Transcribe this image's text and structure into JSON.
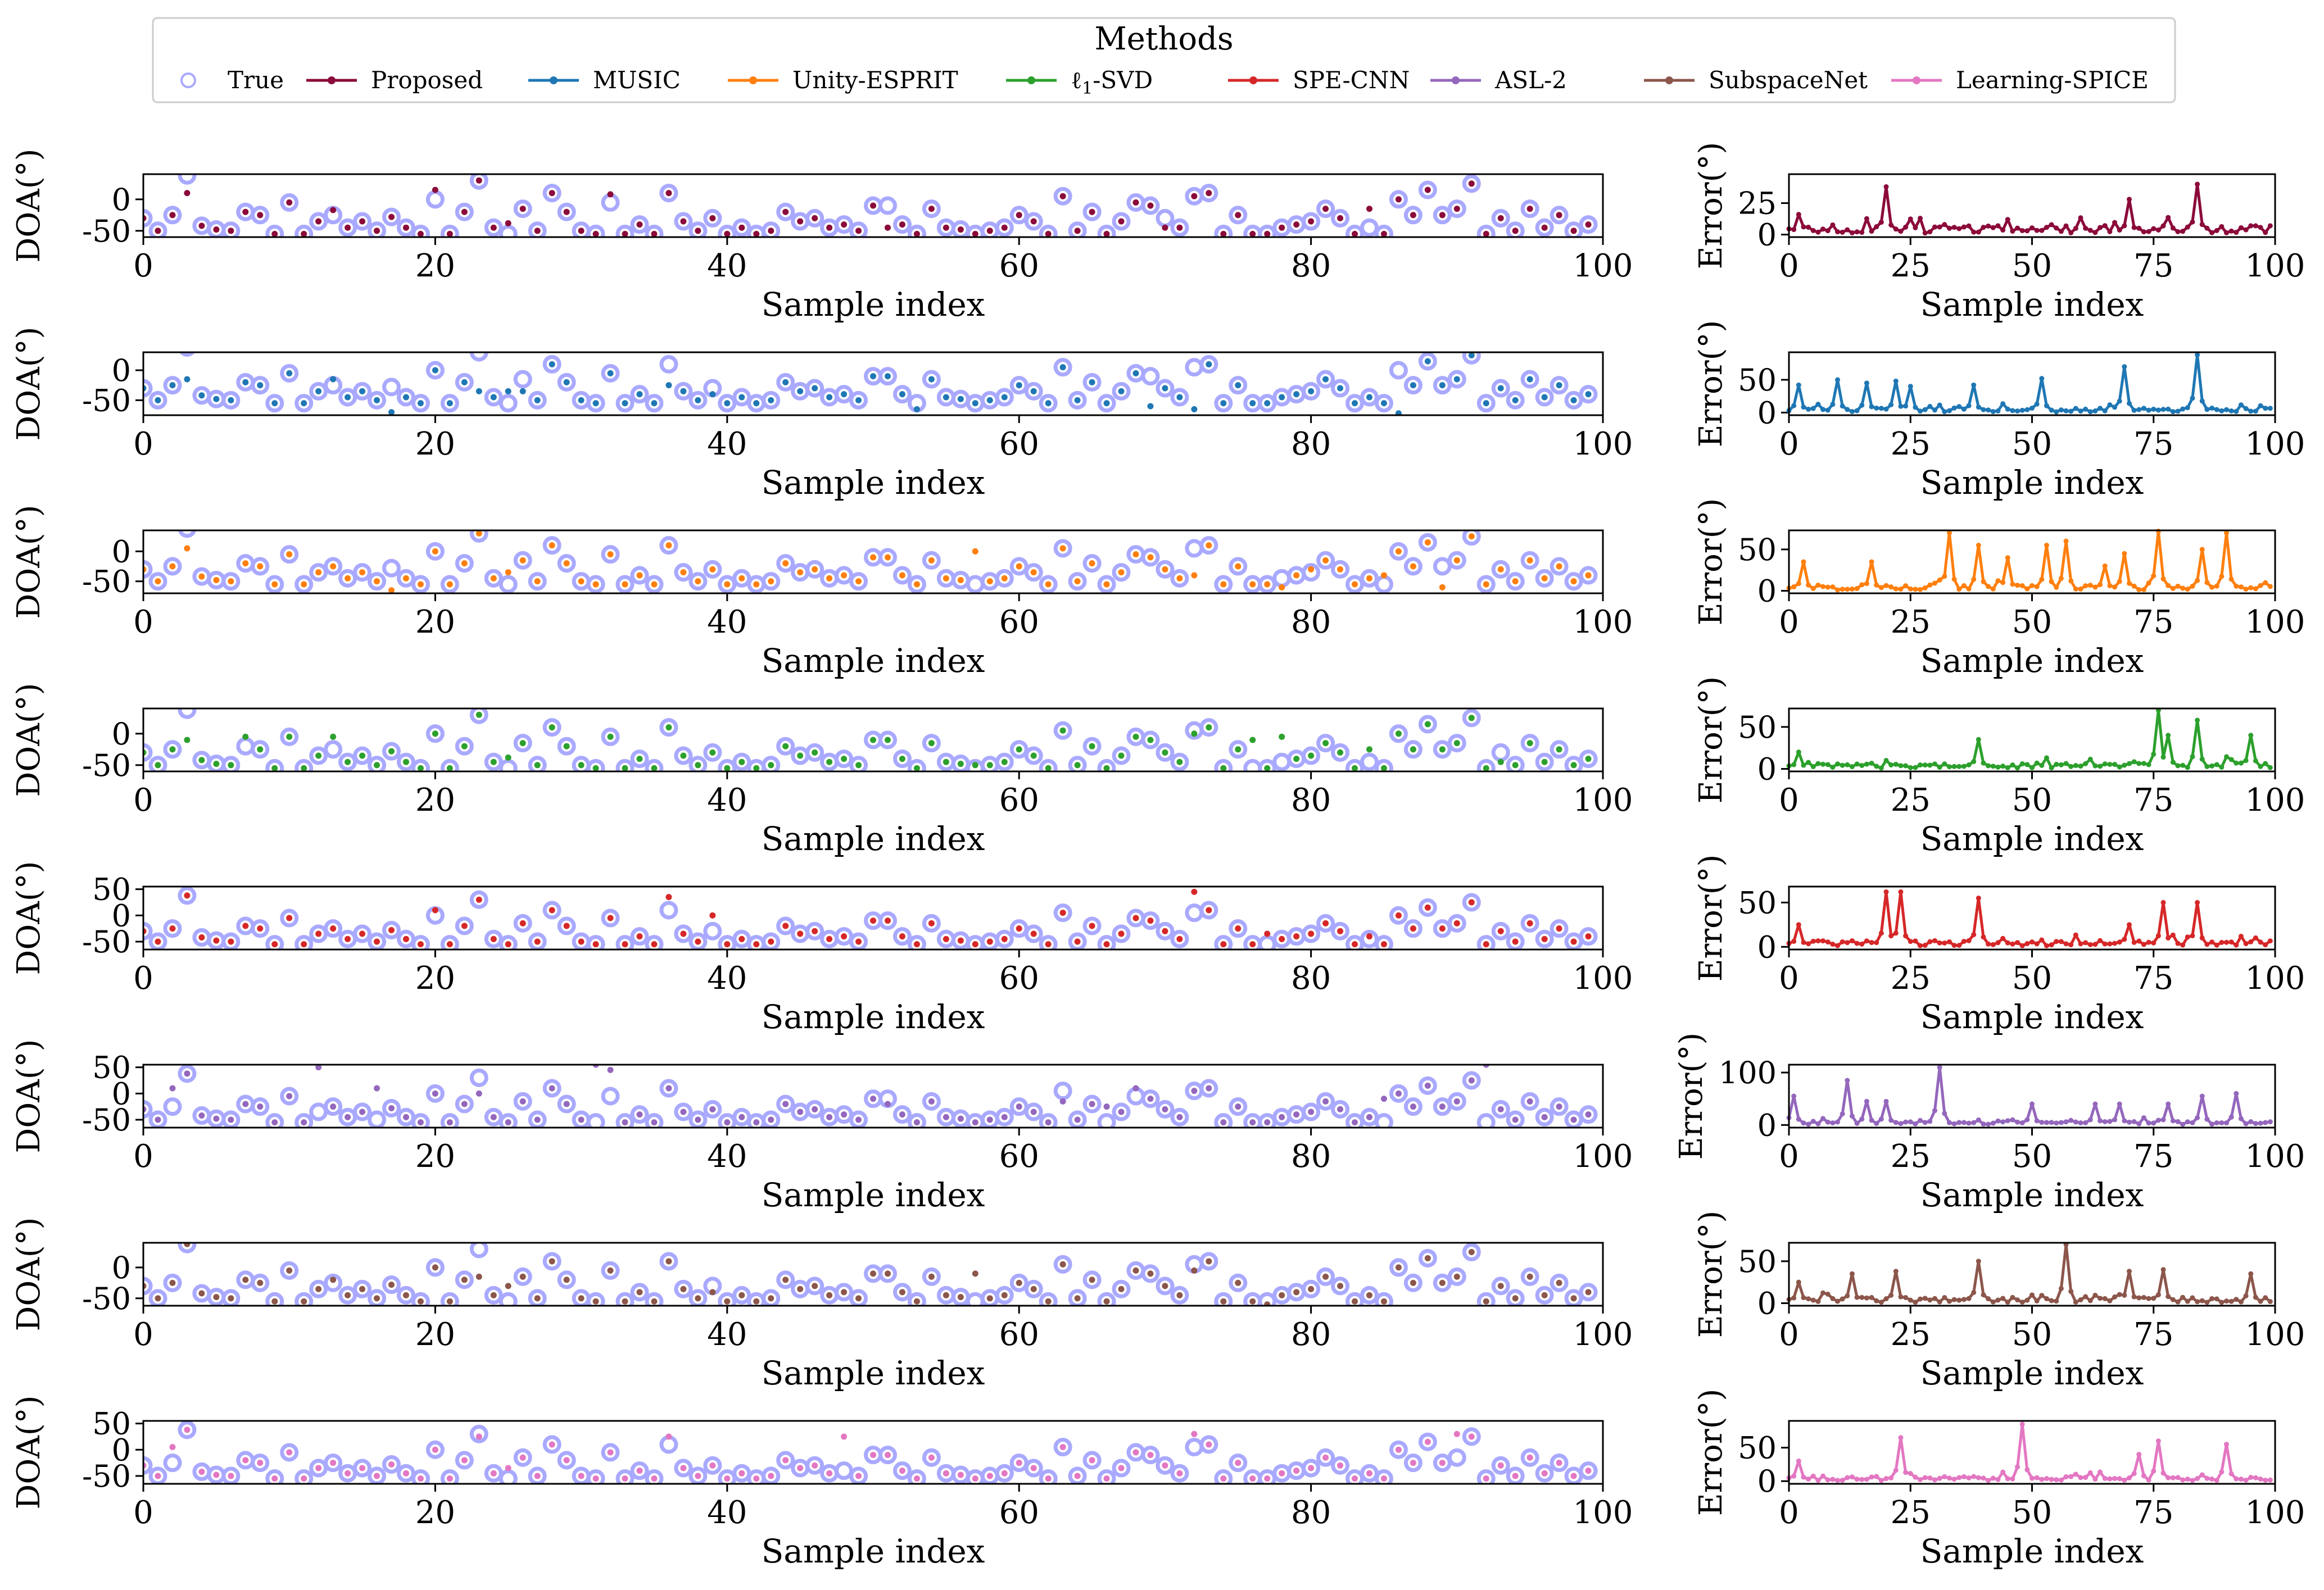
{
  "legend": {
    "title": "Methods",
    "placement": "top-center",
    "entries": [
      {
        "name": "True",
        "color": "#a9a9ff",
        "marker": "hollow-circle"
      },
      {
        "name": "Proposed",
        "color": "#8b0a3a",
        "marker": "line-dot"
      },
      {
        "name": "MUSIC",
        "color": "#1f77b4",
        "marker": "line-dot"
      },
      {
        "name": "Unity-ESPRIT",
        "color": "#ff7f0e",
        "marker": "line-dot"
      },
      {
        "name": "ℓ1-SVD",
        "color": "#2ca02c",
        "marker": "line-dot"
      },
      {
        "name": "SPE-CNN",
        "color": "#d62728",
        "marker": "line-dot"
      },
      {
        "name": "ASL-2",
        "color": "#9467bd",
        "marker": "line-dot"
      },
      {
        "name": "SubspaceNet",
        "color": "#8c564b",
        "marker": "line-dot"
      },
      {
        "name": "Learning-SPICE",
        "color": "#e377c2",
        "marker": "line-dot"
      }
    ]
  },
  "chart_data": {
    "type": "scatter",
    "true_doa": [
      -30,
      -50,
      -25,
      38,
      -42,
      -48,
      -50,
      -20,
      -25,
      -55,
      -5,
      -55,
      -35,
      -25,
      -45,
      -35,
      -50,
      -28,
      -45,
      -55,
      0,
      -55,
      -20,
      30,
      -45,
      -55,
      -15,
      -50,
      10,
      -20,
      -50,
      -55,
      -5,
      -55,
      -40,
      -55,
      10,
      -35,
      -50,
      -30,
      -55,
      -45,
      -55,
      -50,
      -20,
      -35,
      -30,
      -45,
      -40,
      -50,
      -10,
      -10,
      -40,
      -55,
      -15,
      -45,
      -48,
      -55,
      -50,
      -45,
      -25,
      -35,
      -55,
      5,
      -50,
      -20,
      -55,
      -35,
      -5,
      -10,
      -30,
      -45,
      5,
      10,
      -55,
      -25,
      -55,
      -55,
      -45,
      -40,
      -35,
      -15,
      -30,
      -55,
      -45,
      -55,
      0,
      -25,
      15,
      -25,
      -15,
      25,
      -55,
      -30,
      -50,
      -15,
      -45,
      -25,
      -50,
      -40
    ],
    "plots": [
      {
        "method": "Proposed",
        "color": "#8b0a3a",
        "doa_ylim": [
          -60,
          40
        ],
        "doa_yticks": [
          -50,
          0
        ],
        "err_ylim": [
          -2,
          48
        ],
        "err_yticks": [
          0,
          25
        ],
        "deviations": [
          {
            "i": 3,
            "v": 10
          },
          {
            "i": 13,
            "v": -17
          },
          {
            "i": 20,
            "v": 15
          },
          {
            "i": 25,
            "v": -38
          },
          {
            "i": 32,
            "v": 8
          },
          {
            "i": 51,
            "v": -45
          },
          {
            "i": 70,
            "v": -45
          },
          {
            "i": 84,
            "v": -15
          }
        ],
        "spikes": [
          {
            "i": 2,
            "v": 16
          },
          {
            "i": 20,
            "v": 38
          },
          {
            "i": 45,
            "v": 12
          },
          {
            "i": 70,
            "v": 28
          },
          {
            "i": 84,
            "v": 40
          }
        ]
      },
      {
        "method": "MUSIC",
        "color": "#1f77b4",
        "doa_ylim": [
          -75,
          30
        ],
        "doa_yticks": [
          -50,
          0
        ],
        "err_ylim": [
          -4,
          92
        ],
        "err_yticks": [
          0,
          50
        ],
        "deviations": [
          {
            "i": 3,
            "v": -15
          },
          {
            "i": 13,
            "v": -15
          },
          {
            "i": 17,
            "v": -70
          },
          {
            "i": 23,
            "v": -35
          },
          {
            "i": 25,
            "v": -35
          },
          {
            "i": 26,
            "v": -35
          },
          {
            "i": 36,
            "v": -25
          },
          {
            "i": 39,
            "v": -40
          },
          {
            "i": 53,
            "v": -65
          },
          {
            "i": 69,
            "v": -60
          },
          {
            "i": 72,
            "v": -65
          },
          {
            "i": 86,
            "v": -72
          }
        ],
        "spikes": [
          {
            "i": 2,
            "v": 42
          },
          {
            "i": 10,
            "v": 50
          },
          {
            "i": 16,
            "v": 45
          },
          {
            "i": 22,
            "v": 48
          },
          {
            "i": 25,
            "v": 40
          },
          {
            "i": 38,
            "v": 42
          },
          {
            "i": 52,
            "v": 52
          },
          {
            "i": 69,
            "v": 70
          },
          {
            "i": 84,
            "v": 88
          }
        ]
      },
      {
        "method": "Unity-ESPRIT",
        "color": "#ff7f0e",
        "doa_ylim": [
          -70,
          35
        ],
        "doa_yticks": [
          -50,
          0
        ],
        "err_ylim": [
          -3,
          73
        ],
        "err_yticks": [
          0,
          50
        ],
        "deviations": [
          {
            "i": 3,
            "v": 5
          },
          {
            "i": 17,
            "v": -65
          },
          {
            "i": 25,
            "v": -35
          },
          {
            "i": 31,
            "v": -55
          },
          {
            "i": 57,
            "v": 0
          },
          {
            "i": 72,
            "v": -40
          },
          {
            "i": 78,
            "v": -60
          },
          {
            "i": 80,
            "v": -30
          },
          {
            "i": 85,
            "v": -40
          },
          {
            "i": 89,
            "v": -60
          }
        ],
        "spikes": [
          {
            "i": 3,
            "v": 35
          },
          {
            "i": 17,
            "v": 35
          },
          {
            "i": 33,
            "v": 70
          },
          {
            "i": 39,
            "v": 55
          },
          {
            "i": 45,
            "v": 40
          },
          {
            "i": 53,
            "v": 55
          },
          {
            "i": 57,
            "v": 60
          },
          {
            "i": 65,
            "v": 30
          },
          {
            "i": 69,
            "v": 45
          },
          {
            "i": 76,
            "v": 72
          },
          {
            "i": 85,
            "v": 50
          },
          {
            "i": 90,
            "v": 70
          }
        ]
      },
      {
        "method": "ℓ1-SVD",
        "color": "#2ca02c",
        "doa_ylim": [
          -60,
          40
        ],
        "doa_yticks": [
          -50,
          0
        ],
        "err_ylim": [
          -3,
          72
        ],
        "err_yticks": [
          0,
          50
        ],
        "deviations": [
          {
            "i": 3,
            "v": -10
          },
          {
            "i": 7,
            "v": -5
          },
          {
            "i": 13,
            "v": -5
          },
          {
            "i": 25,
            "v": -38
          },
          {
            "i": 37,
            "v": -35
          },
          {
            "i": 57,
            "v": -50
          },
          {
            "i": 72,
            "v": 0
          },
          {
            "i": 76,
            "v": -10
          },
          {
            "i": 78,
            "v": -5
          },
          {
            "i": 84,
            "v": -25
          },
          {
            "i": 93,
            "v": -45
          }
        ],
        "spikes": [
          {
            "i": 2,
            "v": 20
          },
          {
            "i": 39,
            "v": 35
          },
          {
            "i": 76,
            "v": 70
          },
          {
            "i": 78,
            "v": 40
          },
          {
            "i": 84,
            "v": 58
          },
          {
            "i": 95,
            "v": 40
          }
        ]
      },
      {
        "method": "SPE-CNN",
        "color": "#d62728",
        "doa_ylim": [
          -65,
          55
        ],
        "doa_yticks": [
          -50,
          0,
          50
        ],
        "err_ylim": [
          -3,
          68
        ],
        "err_yticks": [
          0,
          50
        ],
        "deviations": [
          {
            "i": 1,
            "v": -50
          },
          {
            "i": 20,
            "v": 10
          },
          {
            "i": 23,
            "v": 30
          },
          {
            "i": 36,
            "v": 35
          },
          {
            "i": 39,
            "v": 0
          },
          {
            "i": 72,
            "v": 45
          },
          {
            "i": 77,
            "v": -35
          },
          {
            "i": 84,
            "v": -40
          }
        ],
        "spikes": [
          {
            "i": 2,
            "v": 25
          },
          {
            "i": 20,
            "v": 62
          },
          {
            "i": 23,
            "v": 62
          },
          {
            "i": 39,
            "v": 55
          },
          {
            "i": 70,
            "v": 25
          },
          {
            "i": 77,
            "v": 50
          },
          {
            "i": 84,
            "v": 50
          }
        ]
      },
      {
        "method": "ASL-2",
        "color": "#9467bd",
        "doa_ylim": [
          -65,
          55
        ],
        "doa_yticks": [
          -50,
          0,
          50
        ],
        "err_ylim": [
          -5,
          115
        ],
        "err_yticks": [
          0,
          100
        ],
        "deviations": [
          {
            "i": 2,
            "v": 10
          },
          {
            "i": 12,
            "v": 50
          },
          {
            "i": 16,
            "v": 10
          },
          {
            "i": 23,
            "v": 0
          },
          {
            "i": 31,
            "v": 55
          },
          {
            "i": 32,
            "v": 45
          },
          {
            "i": 51,
            "v": -20
          },
          {
            "i": 63,
            "v": -15
          },
          {
            "i": 66,
            "v": -25
          },
          {
            "i": 68,
            "v": 10
          },
          {
            "i": 85,
            "v": -10
          },
          {
            "i": 92,
            "v": 55
          }
        ],
        "spikes": [
          {
            "i": 1,
            "v": 55
          },
          {
            "i": 12,
            "v": 85
          },
          {
            "i": 16,
            "v": 45
          },
          {
            "i": 20,
            "v": 45
          },
          {
            "i": 31,
            "v": 110
          },
          {
            "i": 50,
            "v": 40
          },
          {
            "i": 63,
            "v": 40
          },
          {
            "i": 68,
            "v": 40
          },
          {
            "i": 78,
            "v": 40
          },
          {
            "i": 85,
            "v": 55
          },
          {
            "i": 92,
            "v": 60
          }
        ]
      },
      {
        "method": "SubspaceNet",
        "color": "#8c564b",
        "doa_ylim": [
          -62,
          40
        ],
        "doa_yticks": [
          -50,
          0
        ],
        "err_ylim": [
          -3,
          72
        ],
        "err_yticks": [
          0,
          50
        ],
        "deviations": [
          {
            "i": 2,
            "v": -25
          },
          {
            "i": 13,
            "v": -20
          },
          {
            "i": 23,
            "v": -15
          },
          {
            "i": 25,
            "v": -30
          },
          {
            "i": 39,
            "v": -40
          },
          {
            "i": 57,
            "v": -10
          },
          {
            "i": 72,
            "v": -5
          },
          {
            "i": 77,
            "v": -60
          }
        ],
        "spikes": [
          {
            "i": 2,
            "v": 25
          },
          {
            "i": 13,
            "v": 35
          },
          {
            "i": 22,
            "v": 38
          },
          {
            "i": 39,
            "v": 50
          },
          {
            "i": 57,
            "v": 70
          },
          {
            "i": 70,
            "v": 38
          },
          {
            "i": 77,
            "v": 40
          },
          {
            "i": 95,
            "v": 35
          }
        ]
      },
      {
        "method": "Learning-SPICE",
        "color": "#e377c2",
        "doa_ylim": [
          -65,
          55
        ],
        "doa_yticks": [
          -50,
          0,
          50
        ],
        "err_ylim": [
          -4,
          90
        ],
        "err_yticks": [
          0,
          50
        ],
        "deviations": [
          {
            "i": 2,
            "v": 5
          },
          {
            "i": 23,
            "v": 25
          },
          {
            "i": 25,
            "v": -35
          },
          {
            "i": 36,
            "v": 25
          },
          {
            "i": 48,
            "v": 25
          },
          {
            "i": 72,
            "v": 30
          },
          {
            "i": 90,
            "v": 30
          }
        ],
        "spikes": [
          {
            "i": 2,
            "v": 30
          },
          {
            "i": 23,
            "v": 65
          },
          {
            "i": 48,
            "v": 85
          },
          {
            "i": 72,
            "v": 40
          },
          {
            "i": 76,
            "v": 60
          },
          {
            "i": 90,
            "v": 55
          }
        ]
      }
    ],
    "xlim_doa": [
      0,
      100
    ],
    "xticks_doa": [
      0,
      20,
      40,
      60,
      80,
      100
    ],
    "xlim_err": [
      0,
      100
    ],
    "xticks_err": [
      0,
      25,
      50,
      75,
      100
    ],
    "xlabel": "Sample index",
    "ylabel_doa": "DOA(°)",
    "ylabel_err": "Error(°)"
  }
}
